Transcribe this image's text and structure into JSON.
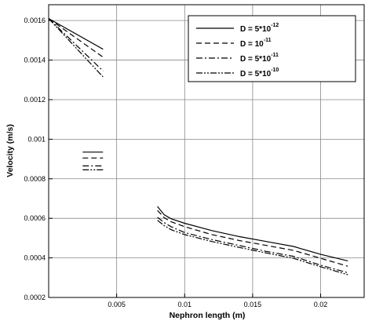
{
  "chart_data": {
    "type": "line",
    "title": "",
    "xlabel": "Nephron length (m)",
    "ylabel": "Velocity (m/s)",
    "xlim": [
      0,
      0.0232
    ],
    "ylim": [
      0.0002,
      0.00168
    ],
    "grid": true,
    "legend_position": "top-right",
    "x_ticks": [
      {
        "value": 0.005,
        "label": "0.005"
      },
      {
        "value": 0.01,
        "label": "0.01"
      },
      {
        "value": 0.015,
        "label": "0.015"
      },
      {
        "value": 0.02,
        "label": "0.02"
      }
    ],
    "y_ticks": [
      {
        "value": 0.0002,
        "label": "0.0002"
      },
      {
        "value": 0.0004,
        "label": "0.0004"
      },
      {
        "value": 0.0006,
        "label": "0.0006"
      },
      {
        "value": 0.0008,
        "label": "0.0008"
      },
      {
        "value": 0.001,
        "label": "0.001"
      },
      {
        "value": 0.0012,
        "label": "0.0012"
      },
      {
        "value": 0.0014,
        "label": "0.0014"
      },
      {
        "value": 0.0016,
        "label": "0.0016"
      }
    ],
    "series": [
      {
        "name": "D = 5*10-12",
        "legend": {
          "base": "D = 5*10",
          "exp": "-12"
        },
        "dash": "solid",
        "segments": [
          [
            [
              0.0,
              0.00161
            ],
            [
              0.004,
              0.001455
            ]
          ],
          [
            [
              0.0025,
              0.000935
            ],
            [
              0.0032,
              0.000935
            ],
            [
              0.004,
              0.000935
            ]
          ],
          [
            [
              0.008,
              0.00066
            ],
            [
              0.0085,
              0.000618
            ],
            [
              0.009,
              0.000598
            ],
            [
              0.01,
              0.000575
            ],
            [
              0.012,
              0.000538
            ],
            [
              0.014,
              0.000508
            ],
            [
              0.016,
              0.000483
            ],
            [
              0.018,
              0.000458
            ],
            [
              0.02,
              0.000418
            ],
            [
              0.022,
              0.000385
            ]
          ]
        ]
      },
      {
        "name": "D = 10-11",
        "legend": {
          "base": "D = 10",
          "exp": "-11"
        },
        "dash": "dashed",
        "segments": [
          [
            [
              0.0,
              0.00161
            ],
            [
              0.004,
              0.001415
            ]
          ],
          [
            [
              0.0025,
              0.000905
            ],
            [
              0.0032,
              0.000905
            ],
            [
              0.004,
              0.000905
            ]
          ],
          [
            [
              0.008,
              0.00064
            ],
            [
              0.0085,
              0.000603
            ],
            [
              0.009,
              0.000583
            ],
            [
              0.01,
              0.000558
            ],
            [
              0.012,
              0.000518
            ],
            [
              0.014,
              0.000488
            ],
            [
              0.016,
              0.000463
            ],
            [
              0.018,
              0.000438
            ],
            [
              0.02,
              0.000398
            ],
            [
              0.022,
              0.000358
            ]
          ]
        ]
      },
      {
        "name": "D = 5*10-11",
        "legend": {
          "base": "D = 5*10",
          "exp": "-11"
        },
        "dash": "dashdot",
        "segments": [
          [
            [
              0.0,
              0.00161
            ],
            [
              0.004,
              0.001345
            ]
          ],
          [
            [
              0.0025,
              0.000865
            ],
            [
              0.0032,
              0.000865
            ],
            [
              0.004,
              0.000865
            ]
          ],
          [
            [
              0.008,
              0.000605
            ],
            [
              0.0085,
              0.000578
            ],
            [
              0.009,
              0.000558
            ],
            [
              0.01,
              0.000528
            ],
            [
              0.012,
              0.000493
            ],
            [
              0.014,
              0.000463
            ],
            [
              0.016,
              0.000433
            ],
            [
              0.018,
              0.000408
            ],
            [
              0.02,
              0.000363
            ],
            [
              0.022,
              0.000325
            ]
          ]
        ]
      },
      {
        "name": "D = 5*10-10",
        "legend": {
          "base": "D = 5*10",
          "exp": "-10"
        },
        "dash": "dashdotdot",
        "segments": [
          [
            [
              0.0,
              0.00161
            ],
            [
              0.004,
              0.001315
            ]
          ],
          [
            [
              0.0025,
              0.000845
            ],
            [
              0.0032,
              0.000845
            ],
            [
              0.004,
              0.000845
            ]
          ],
          [
            [
              0.008,
              0.00059
            ],
            [
              0.0085,
              0.000563
            ],
            [
              0.009,
              0.000543
            ],
            [
              0.01,
              0.000518
            ],
            [
              0.012,
              0.000483
            ],
            [
              0.014,
              0.000453
            ],
            [
              0.016,
              0.000425
            ],
            [
              0.018,
              0.000398
            ],
            [
              0.02,
              0.000355
            ],
            [
              0.022,
              0.000315
            ]
          ]
        ]
      }
    ]
  }
}
